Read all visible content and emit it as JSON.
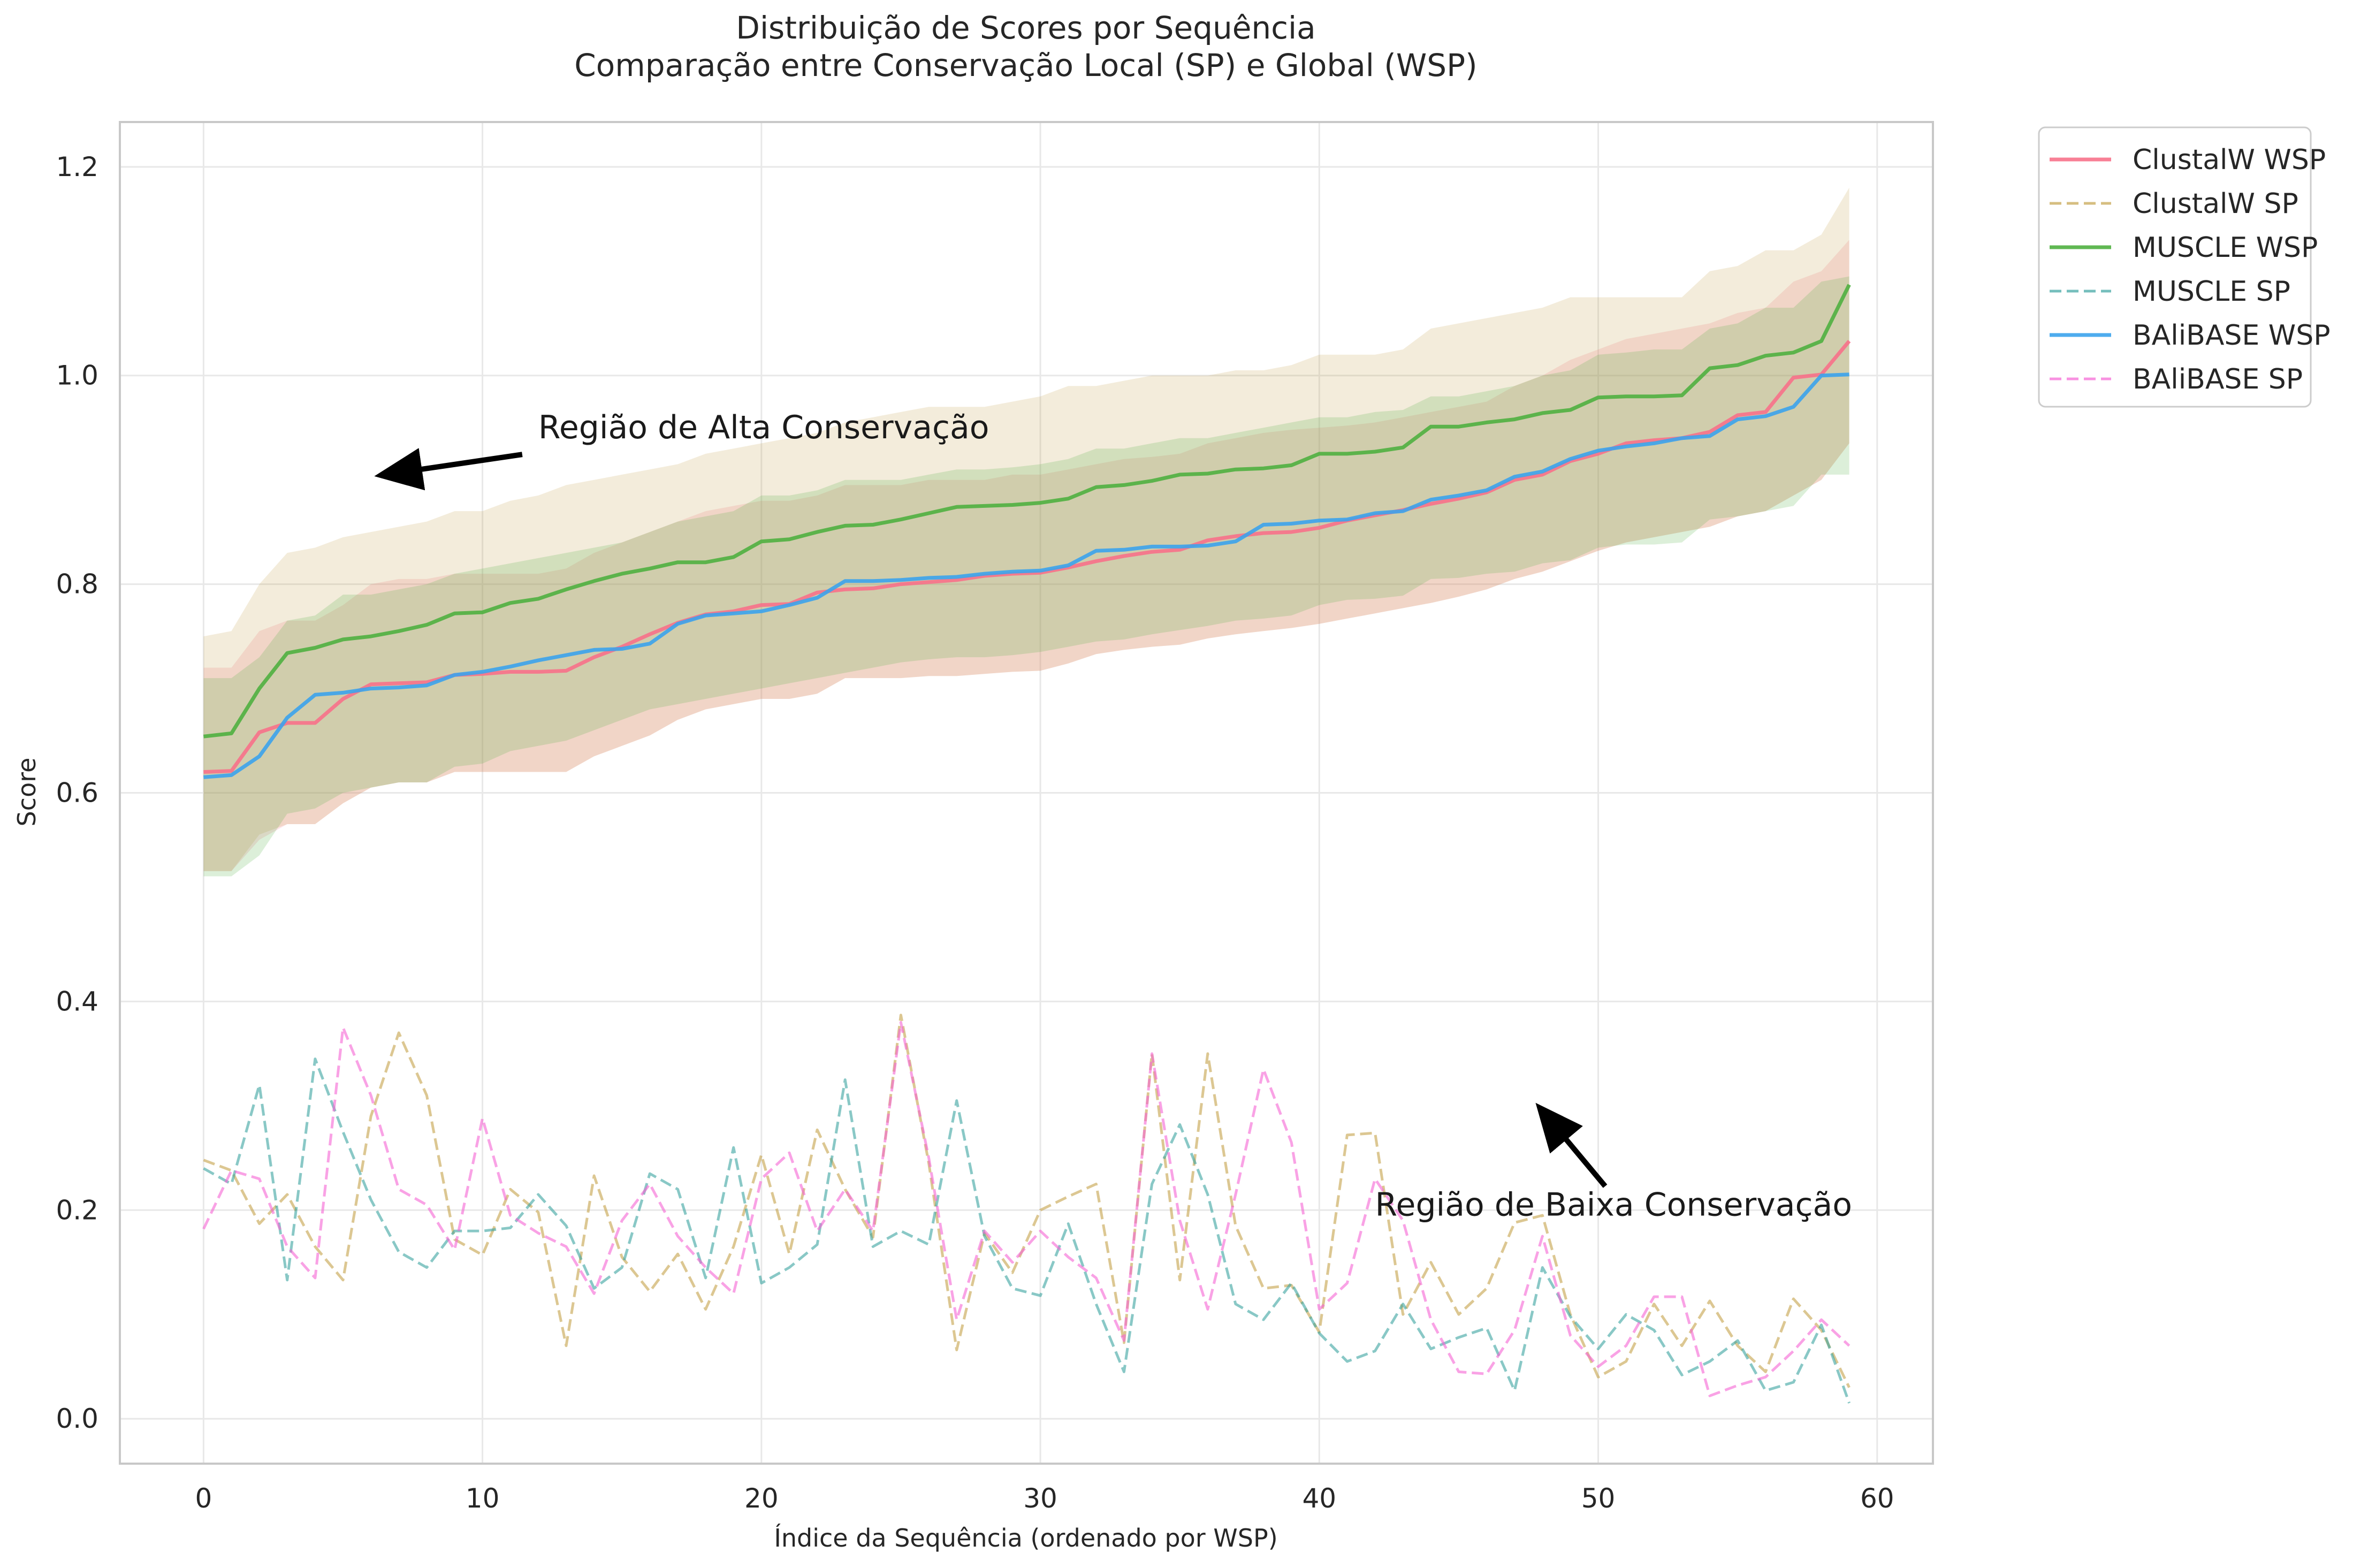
{
  "chart_data": {
    "type": "line",
    "title": "Distribuição de Scores por Sequência",
    "subtitle": "Comparação entre Conservação Local (SP) e Global (WSP)",
    "xlabel": "Índice da Sequência (ordenado por WSP)",
    "ylabel": "Score",
    "xlim": [
      -3,
      62
    ],
    "ylim": [
      -0.043,
      1.243
    ],
    "xticks": [
      0,
      10,
      20,
      30,
      40,
      50,
      60
    ],
    "xtick_labels": [
      "0",
      "10",
      "20",
      "30",
      "40",
      "50",
      "60"
    ],
    "yticks": [
      0.0,
      0.2,
      0.4,
      0.6,
      0.8,
      1.0,
      1.2
    ],
    "ytick_labels": [
      "0.0",
      "0.2",
      "0.4",
      "0.6",
      "0.8",
      "1.0",
      "1.2"
    ],
    "grid": true,
    "legend_position": "outside-top-right",
    "annotations": [
      {
        "text": "Região de Alta Conservação",
        "xy": [
          6.5,
          0.905
        ],
        "xytext": [
          12,
          0.95
        ]
      },
      {
        "text": "Região de Baixa Conservação",
        "xy": [
          48,
          0.295
        ],
        "xytext": [
          42,
          0.205
        ]
      }
    ],
    "bands": [
      {
        "series": "ClustalW WSP",
        "color": "#f77189",
        "opacity": 0.2,
        "lower": [
          0.525,
          0.525,
          0.555,
          0.57,
          0.57,
          0.59,
          0.605,
          0.61,
          0.61,
          0.62,
          0.62,
          0.62,
          0.62,
          0.62,
          0.635,
          0.645,
          0.655,
          0.67,
          0.68,
          0.685,
          0.69,
          0.69,
          0.695,
          0.71,
          0.71,
          0.71,
          0.712,
          0.712,
          0.714,
          0.716,
          0.717,
          0.724,
          0.733,
          0.737,
          0.74,
          0.742,
          0.748,
          0.752,
          0.755,
          0.758,
          0.762,
          0.767,
          0.772,
          0.777,
          0.782,
          0.788,
          0.795,
          0.805,
          0.812,
          0.822,
          0.832,
          0.84,
          0.845,
          0.85,
          0.855,
          0.865,
          0.87,
          0.885,
          0.9,
          0.935
        ],
        "upper": [
          0.72,
          0.72,
          0.755,
          0.765,
          0.765,
          0.78,
          0.8,
          0.805,
          0.805,
          0.81,
          0.81,
          0.81,
          0.81,
          0.815,
          0.83,
          0.84,
          0.85,
          0.86,
          0.87,
          0.875,
          0.88,
          0.88,
          0.885,
          0.895,
          0.895,
          0.895,
          0.9,
          0.9,
          0.9,
          0.905,
          0.905,
          0.91,
          0.915,
          0.92,
          0.922,
          0.925,
          0.935,
          0.94,
          0.945,
          0.948,
          0.95,
          0.952,
          0.955,
          0.96,
          0.965,
          0.97,
          0.975,
          0.99,
          1.0,
          1.015,
          1.025,
          1.035,
          1.04,
          1.045,
          1.05,
          1.06,
          1.065,
          1.09,
          1.1,
          1.13
        ]
      },
      {
        "series": "ClustalW SP",
        "color": "#c4a24a",
        "opacity": 0.2,
        "lower": [
          0.525,
          0.525,
          0.56,
          0.57,
          0.57,
          0.59,
          0.605,
          0.61,
          0.61,
          0.62,
          0.62,
          0.62,
          0.62,
          0.62,
          0.635,
          0.645,
          0.655,
          0.67,
          0.68,
          0.685,
          0.69,
          0.69,
          0.695,
          0.71,
          0.71,
          0.71,
          0.712,
          0.712,
          0.714,
          0.716,
          0.717,
          0.724,
          0.733,
          0.737,
          0.74,
          0.742,
          0.748,
          0.752,
          0.755,
          0.758,
          0.762,
          0.767,
          0.772,
          0.777,
          0.782,
          0.788,
          0.795,
          0.805,
          0.812,
          0.822,
          0.832,
          0.84,
          0.845,
          0.85,
          0.855,
          0.865,
          0.87,
          0.885,
          0.9,
          0.935
        ],
        "upper": [
          0.75,
          0.755,
          0.8,
          0.83,
          0.835,
          0.845,
          0.85,
          0.855,
          0.86,
          0.87,
          0.87,
          0.88,
          0.885,
          0.895,
          0.9,
          0.905,
          0.91,
          0.915,
          0.925,
          0.93,
          0.935,
          0.94,
          0.945,
          0.955,
          0.96,
          0.965,
          0.97,
          0.97,
          0.97,
          0.975,
          0.98,
          0.99,
          0.99,
          0.995,
          1.0,
          1.0,
          1.0,
          1.005,
          1.005,
          1.01,
          1.02,
          1.02,
          1.02,
          1.025,
          1.045,
          1.05,
          1.055,
          1.06,
          1.065,
          1.075,
          1.075,
          1.075,
          1.075,
          1.075,
          1.1,
          1.105,
          1.12,
          1.12,
          1.135,
          1.18
        ]
      },
      {
        "series": "MUSCLE WSP",
        "color": "#4fb040",
        "opacity": 0.2,
        "lower": [
          0.52,
          0.52,
          0.54,
          0.58,
          0.585,
          0.6,
          0.605,
          0.61,
          0.61,
          0.625,
          0.628,
          0.64,
          0.645,
          0.65,
          0.66,
          0.67,
          0.68,
          0.685,
          0.69,
          0.695,
          0.7,
          0.705,
          0.71,
          0.715,
          0.72,
          0.725,
          0.728,
          0.73,
          0.73,
          0.732,
          0.735,
          0.74,
          0.745,
          0.747,
          0.752,
          0.756,
          0.76,
          0.765,
          0.767,
          0.77,
          0.78,
          0.785,
          0.786,
          0.789,
          0.805,
          0.806,
          0.81,
          0.812,
          0.82,
          0.823,
          0.835,
          0.838,
          0.838,
          0.84,
          0.862,
          0.865,
          0.87,
          0.875,
          0.905,
          0.905
        ],
        "upper": [
          0.71,
          0.71,
          0.73,
          0.765,
          0.77,
          0.79,
          0.79,
          0.795,
          0.8,
          0.81,
          0.815,
          0.82,
          0.825,
          0.83,
          0.835,
          0.84,
          0.85,
          0.86,
          0.865,
          0.87,
          0.885,
          0.885,
          0.89,
          0.9,
          0.9,
          0.9,
          0.905,
          0.91,
          0.91,
          0.912,
          0.915,
          0.92,
          0.93,
          0.93,
          0.935,
          0.94,
          0.94,
          0.945,
          0.95,
          0.955,
          0.96,
          0.96,
          0.965,
          0.967,
          0.98,
          0.98,
          0.985,
          0.99,
          1.0,
          1.005,
          1.02,
          1.022,
          1.025,
          1.025,
          1.045,
          1.05,
          1.065,
          1.065,
          1.09,
          1.095
        ]
      }
    ],
    "series": [
      {
        "name": "ClustalW WSP",
        "color": "#f77189",
        "dashed": false,
        "values": [
          0.62,
          0.621,
          0.658,
          0.667,
          0.667,
          0.69,
          0.704,
          0.705,
          0.706,
          0.713,
          0.714,
          0.716,
          0.716,
          0.717,
          0.73,
          0.74,
          0.752,
          0.763,
          0.771,
          0.774,
          0.78,
          0.781,
          0.792,
          0.795,
          0.796,
          0.8,
          0.802,
          0.804,
          0.808,
          0.81,
          0.811,
          0.816,
          0.822,
          0.827,
          0.831,
          0.833,
          0.842,
          0.846,
          0.849,
          0.85,
          0.854,
          0.861,
          0.866,
          0.871,
          0.877,
          0.882,
          0.888,
          0.9,
          0.905,
          0.918,
          0.925,
          0.935,
          0.938,
          0.94,
          0.946,
          0.962,
          0.965,
          0.998,
          1.001,
          1.033
        ]
      },
      {
        "name": "ClustalW SP",
        "color": "#c4a24a",
        "dashed": true,
        "values": [
          0.248,
          0.238,
          0.187,
          0.215,
          0.165,
          0.133,
          0.29,
          0.37,
          0.31,
          0.172,
          0.157,
          0.22,
          0.198,
          0.07,
          0.233,
          0.155,
          0.122,
          0.158,
          0.105,
          0.165,
          0.253,
          0.158,
          0.277,
          0.22,
          0.174,
          0.387,
          0.245,
          0.066,
          0.178,
          0.14,
          0.2,
          0.213,
          0.225,
          0.073,
          0.35,
          0.133,
          0.35,
          0.185,
          0.125,
          0.128,
          0.083,
          0.272,
          0.274,
          0.1,
          0.15,
          0.1,
          0.125,
          0.188,
          0.195,
          0.1,
          0.04,
          0.055,
          0.11,
          0.07,
          0.113,
          0.07,
          0.045,
          0.115,
          0.085,
          0.03
        ]
      },
      {
        "name": "MUSCLE WSP",
        "color": "#4fb040",
        "dashed": false,
        "values": [
          0.654,
          0.657,
          0.7,
          0.734,
          0.739,
          0.747,
          0.75,
          0.755,
          0.761,
          0.772,
          0.773,
          0.782,
          0.786,
          0.795,
          0.803,
          0.81,
          0.815,
          0.821,
          0.821,
          0.826,
          0.841,
          0.843,
          0.85,
          0.856,
          0.857,
          0.862,
          0.868,
          0.874,
          0.875,
          0.876,
          0.878,
          0.882,
          0.893,
          0.895,
          0.899,
          0.905,
          0.906,
          0.91,
          0.911,
          0.914,
          0.925,
          0.925,
          0.927,
          0.931,
          0.951,
          0.951,
          0.955,
          0.958,
          0.964,
          0.967,
          0.979,
          0.98,
          0.98,
          0.981,
          1.007,
          1.01,
          1.019,
          1.022,
          1.033,
          1.087
        ]
      },
      {
        "name": "MUSCLE SP",
        "color": "#3ba3a0",
        "dashed": true,
        "values": [
          0.24,
          0.225,
          0.32,
          0.133,
          0.345,
          0.275,
          0.21,
          0.16,
          0.145,
          0.18,
          0.18,
          0.183,
          0.215,
          0.185,
          0.125,
          0.145,
          0.235,
          0.22,
          0.135,
          0.26,
          0.13,
          0.145,
          0.167,
          0.325,
          0.165,
          0.18,
          0.167,
          0.305,
          0.175,
          0.125,
          0.118,
          0.187,
          0.11,
          0.045,
          0.225,
          0.282,
          0.215,
          0.11,
          0.095,
          0.13,
          0.082,
          0.055,
          0.065,
          0.11,
          0.067,
          0.078,
          0.087,
          0.027,
          0.145,
          0.098,
          0.067,
          0.1,
          0.085,
          0.042,
          0.055,
          0.075,
          0.027,
          0.035,
          0.09,
          0.015
        ]
      },
      {
        "name": "BAliBASE WSP",
        "color": "#3ba3ec",
        "dashed": false,
        "values": [
          0.615,
          0.617,
          0.635,
          0.672,
          0.694,
          0.696,
          0.7,
          0.701,
          0.703,
          0.713,
          0.716,
          0.721,
          0.727,
          0.732,
          0.737,
          0.738,
          0.743,
          0.762,
          0.77,
          0.772,
          0.774,
          0.78,
          0.787,
          0.803,
          0.803,
          0.804,
          0.806,
          0.807,
          0.81,
          0.812,
          0.813,
          0.818,
          0.832,
          0.833,
          0.836,
          0.836,
          0.837,
          0.841,
          0.857,
          0.858,
          0.861,
          0.862,
          0.868,
          0.87,
          0.881,
          0.885,
          0.89,
          0.903,
          0.908,
          0.92,
          0.928,
          0.932,
          0.935,
          0.94,
          0.942,
          0.958,
          0.961,
          0.97,
          1.0,
          1.001
        ]
      },
      {
        "name": "BAliBASE SP",
        "color": "#f564d4",
        "dashed": true,
        "values": [
          0.182,
          0.238,
          0.23,
          0.165,
          0.135,
          0.375,
          0.31,
          0.22,
          0.205,
          0.162,
          0.288,
          0.195,
          0.178,
          0.165,
          0.12,
          0.19,
          0.225,
          0.175,
          0.145,
          0.12,
          0.23,
          0.255,
          0.18,
          0.22,
          0.18,
          0.38,
          0.25,
          0.095,
          0.18,
          0.15,
          0.18,
          0.155,
          0.135,
          0.075,
          0.35,
          0.19,
          0.105,
          0.215,
          0.335,
          0.265,
          0.105,
          0.13,
          0.23,
          0.19,
          0.095,
          0.045,
          0.043,
          0.085,
          0.175,
          0.08,
          0.05,
          0.07,
          0.117,
          0.117,
          0.022,
          0.032,
          0.04,
          0.065,
          0.095,
          0.07
        ]
      }
    ]
  }
}
